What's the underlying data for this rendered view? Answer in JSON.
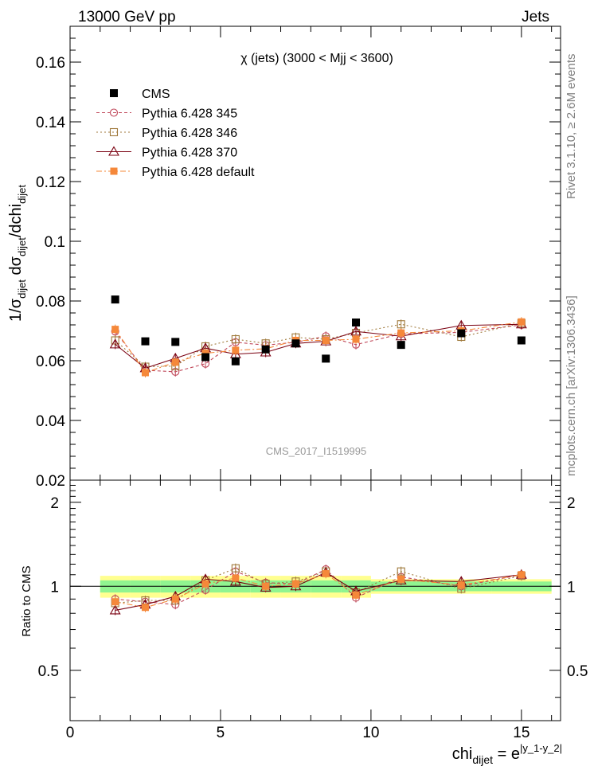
{
  "header": {
    "energy": "13000 GeV pp",
    "process": "Jets",
    "side_top": "Rivet 3.1.10, ≥ 2.6M events",
    "side_bottom": "mcplots.cern.ch [arXiv:1306.3436]",
    "watermark": "CMS_2017_I1519995"
  },
  "colors": {
    "data": "#000000",
    "s345": "#c0485a",
    "s346": "#a07a3c",
    "s370": "#7a0010",
    "sdef": "#f5883a",
    "band_inner": "#90f490",
    "band_outer": "#ffff90"
  },
  "chart_data": [
    {
      "type": "scatter",
      "panel": "main",
      "title": "χ (jets) (3000 < Mjj < 3600)",
      "ylabel": "1/σ_dijet dσ_dijet/dchi_dijet",
      "xlim": [
        0,
        16.3
      ],
      "ylim": [
        0.02,
        0.172
      ],
      "yticks": [
        0.02,
        0.04,
        0.06,
        0.08,
        0.1,
        0.12,
        0.14,
        0.16
      ],
      "ytick_labels": [
        "0.02",
        "0.04",
        "0.06",
        "0.08",
        "0.1",
        "0.12",
        "0.14",
        "0.16"
      ],
      "x": [
        1.5,
        2.5,
        3.5,
        4.5,
        5.5,
        6.5,
        7.5,
        8.5,
        9.5,
        11,
        13,
        15
      ],
      "series": [
        {
          "name": "CMS",
          "key": "data",
          "values": [
            0.0805,
            0.0665,
            0.0663,
            0.0612,
            0.0598,
            0.0638,
            0.0658,
            0.0607,
            0.0728,
            0.0653,
            0.0692,
            0.0668
          ]
        },
        {
          "name": "Pythia 6.428 345",
          "key": "s345",
          "values": [
            0.0698,
            0.0568,
            0.0563,
            0.059,
            0.0662,
            0.0652,
            0.0662,
            0.0682,
            0.0654,
            0.069,
            0.0695,
            0.072
          ]
        },
        {
          "name": "Pythia 6.428 346",
          "key": "s346",
          "values": [
            0.0668,
            0.058,
            0.0582,
            0.0648,
            0.0672,
            0.0658,
            0.0678,
            0.0672,
            0.0693,
            0.0722,
            0.068,
            0.0726
          ]
        },
        {
          "name": "Pythia 6.428 370",
          "key": "s370",
          "values": [
            0.0655,
            0.0575,
            0.0608,
            0.0642,
            0.0622,
            0.0628,
            0.0658,
            0.0665,
            0.0698,
            0.0682,
            0.0718,
            0.0722
          ]
        },
        {
          "name": "Pythia 6.428 default",
          "key": "sdef",
          "values": [
            0.0705,
            0.056,
            0.0595,
            0.0625,
            0.0635,
            0.064,
            0.0668,
            0.0668,
            0.0672,
            0.0693,
            0.07,
            0.073
          ]
        }
      ],
      "legend": [
        "CMS",
        "Pythia 6.428 345",
        "Pythia 6.428 346",
        "Pythia 6.428 370",
        "Pythia 6.428 default"
      ]
    },
    {
      "type": "scatter",
      "panel": "ratio",
      "ylabel": "Ratio to CMS",
      "xlabel": "chi_dijet = e^|y_1-y_2|",
      "xlim": [
        0,
        16.3
      ],
      "ylim": [
        0.33,
        2.4
      ],
      "yscale": "log",
      "yticks": [
        0.5,
        1,
        2
      ],
      "ytick_labels": [
        "0.5",
        "1",
        "2"
      ],
      "xticks": [
        0,
        5,
        10,
        15
      ],
      "xtick_labels": [
        "0",
        "5",
        "10",
        "15"
      ],
      "x": [
        1.5,
        2.5,
        3.5,
        4.5,
        5.5,
        6.5,
        7.5,
        8.5,
        9.5,
        11,
        13,
        15
      ],
      "band_edges": [
        1,
        2,
        3,
        4,
        5,
        6,
        7,
        8,
        9,
        10,
        12,
        14,
        16
      ],
      "band_inner": [
        0.05,
        0.05,
        0.05,
        0.05,
        0.05,
        0.05,
        0.05,
        0.05,
        0.05,
        0.04,
        0.04,
        0.04
      ],
      "band_outer": [
        0.09,
        0.09,
        0.09,
        0.09,
        0.09,
        0.09,
        0.09,
        0.09,
        0.09,
        0.06,
        0.06,
        0.06
      ],
      "series": [
        {
          "name": "Pythia 6.428 345",
          "key": "s345",
          "values": [
            0.9,
            0.88,
            0.86,
            0.97,
            1.13,
            1.03,
            1.02,
            1.15,
            0.91,
            1.08,
            1.0,
            1.1
          ]
        },
        {
          "name": "Pythia 6.428 346",
          "key": "s346",
          "values": [
            0.87,
            0.89,
            0.89,
            1.05,
            1.16,
            1.02,
            1.04,
            1.13,
            0.95,
            1.13,
            0.98,
            1.09
          ]
        },
        {
          "name": "Pythia 6.428 370",
          "key": "s370",
          "values": [
            0.82,
            0.86,
            0.92,
            1.06,
            1.04,
            0.99,
            1.0,
            1.12,
            0.96,
            1.05,
            1.04,
            1.1
          ]
        },
        {
          "name": "Pythia 6.428 default",
          "key": "sdef",
          "values": [
            0.88,
            0.84,
            0.9,
            1.02,
            1.07,
            1.0,
            1.02,
            1.11,
            0.93,
            1.06,
            1.01,
            1.1
          ]
        }
      ]
    }
  ]
}
